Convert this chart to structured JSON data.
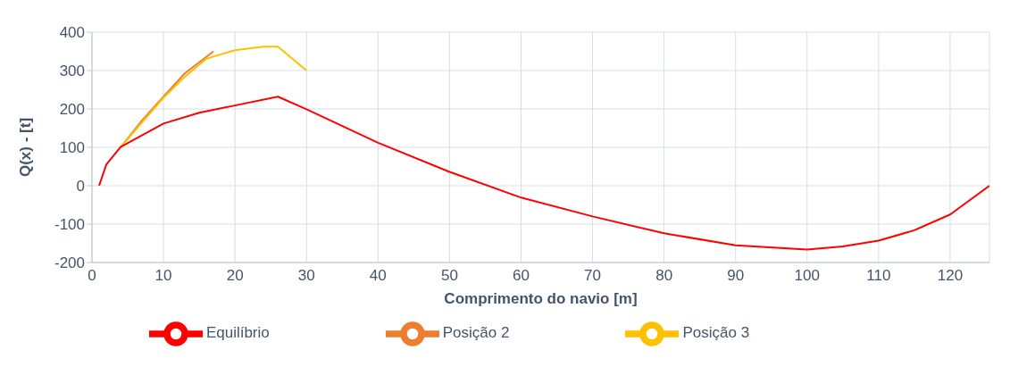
{
  "chart_data": {
    "type": "line",
    "xlabel": "Comprimento do navio [m]",
    "ylabel": "Q(x) - [t]",
    "xlim": [
      0,
      125.5
    ],
    "xticks": [
      0,
      10,
      20,
      30,
      40,
      50,
      60,
      70,
      80,
      90,
      100,
      110,
      120
    ],
    "ylim": [
      -200,
      400
    ],
    "yticks": [
      -200,
      -100,
      0,
      100,
      200,
      300,
      400
    ],
    "grid": true,
    "legend": "bottom",
    "marker": "none",
    "line_style": "solid",
    "series": [
      {
        "name": "Posição 2",
        "color": "#ed7d31",
        "x": [
          4,
          7,
          10,
          13,
          17
        ],
        "values": [
          100,
          170,
          232,
          293,
          350
        ]
      },
      {
        "name": "Posição 3",
        "color": "#ffc000",
        "x": [
          4,
          7,
          10,
          13,
          16,
          20,
          24,
          26,
          30
        ],
        "values": [
          100,
          165,
          229,
          284,
          331,
          353,
          362,
          362,
          300
        ]
      },
      {
        "name": "Equilíbrio",
        "color": "#ff0000",
        "x": [
          1,
          2,
          4,
          10,
          15,
          20,
          26,
          30,
          40,
          50,
          60,
          70,
          80,
          90,
          100,
          105,
          110,
          115,
          120,
          125.5
        ],
        "values": [
          0,
          55,
          101,
          162,
          190,
          209,
          232,
          199,
          112,
          36,
          -31,
          -80,
          -124,
          -155,
          -166,
          -158,
          -143,
          -116,
          -75,
          0
        ]
      }
    ]
  }
}
